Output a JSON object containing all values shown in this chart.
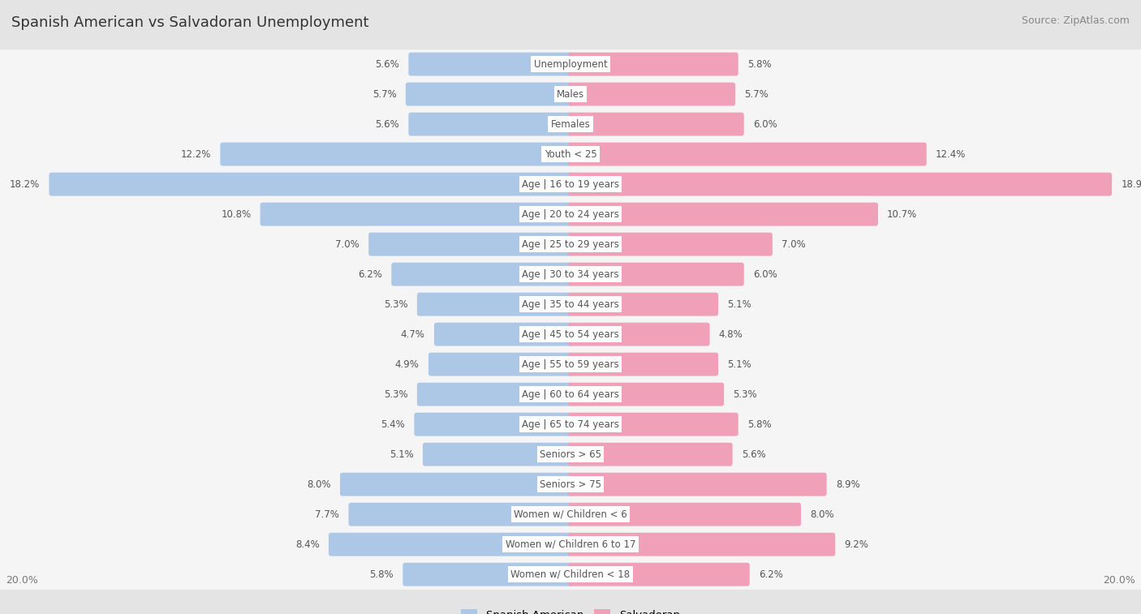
{
  "title": "Spanish American vs Salvadoran Unemployment",
  "source": "Source: ZipAtlas.com",
  "categories": [
    "Unemployment",
    "Males",
    "Females",
    "Youth < 25",
    "Age | 16 to 19 years",
    "Age | 20 to 24 years",
    "Age | 25 to 29 years",
    "Age | 30 to 34 years",
    "Age | 35 to 44 years",
    "Age | 45 to 54 years",
    "Age | 55 to 59 years",
    "Age | 60 to 64 years",
    "Age | 65 to 74 years",
    "Seniors > 65",
    "Seniors > 75",
    "Women w/ Children < 6",
    "Women w/ Children 6 to 17",
    "Women w/ Children < 18"
  ],
  "spanish_american": [
    5.6,
    5.7,
    5.6,
    12.2,
    18.2,
    10.8,
    7.0,
    6.2,
    5.3,
    4.7,
    4.9,
    5.3,
    5.4,
    5.1,
    8.0,
    7.7,
    8.4,
    5.8
  ],
  "salvadoran": [
    5.8,
    5.7,
    6.0,
    12.4,
    18.9,
    10.7,
    7.0,
    6.0,
    5.1,
    4.8,
    5.1,
    5.3,
    5.8,
    5.6,
    8.9,
    8.0,
    9.2,
    6.2
  ],
  "blue_color": "#adc8e6",
  "pink_color": "#f0a0b8",
  "bg_color": "#e4e4e4",
  "row_bg_color": "#f5f5f5",
  "axis_limit": 20.0,
  "label_color": "#555555",
  "title_color": "#333333",
  "value_color": "#555555",
  "legend_label_spanish": "Spanish American",
  "legend_label_salvadoran": "Salvadoran"
}
